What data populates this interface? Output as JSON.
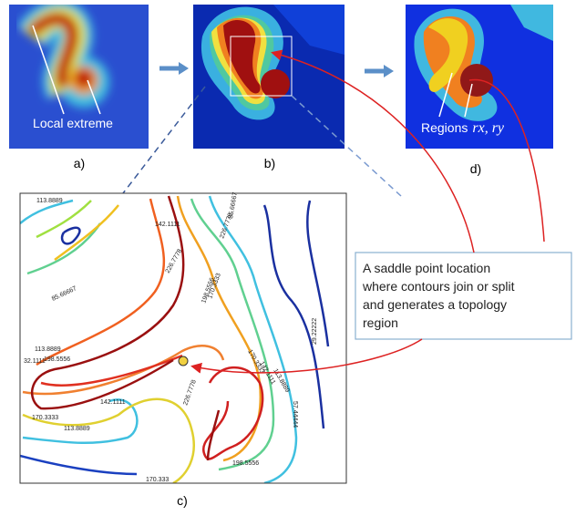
{
  "panels": {
    "a": {
      "label": "a)",
      "annotation": "Local extreme"
    },
    "b": {
      "label": "b)"
    },
    "c": {
      "label": "c)",
      "contour_labels": [
        "113.8889",
        "142.1111",
        "85.66667",
        "226.7778",
        "226.7778",
        "85.66667",
        "198.5556",
        "170.3333",
        "113.8889",
        "198.5556",
        "32.1111",
        "170.3333",
        "142.1111",
        "113.8889",
        "226.7778",
        "57.44444",
        "170.3333",
        "142.1111",
        "113.8889",
        "198.5556",
        "170.333",
        "29.22222"
      ]
    },
    "d": {
      "label": "d)",
      "annotation_prefix": "Regions",
      "annotation_vars": "rx, ry"
    }
  },
  "callout": {
    "lines": [
      "A saddle point location",
      "where contours join or split",
      "and generates a topology",
      "region"
    ]
  }
}
